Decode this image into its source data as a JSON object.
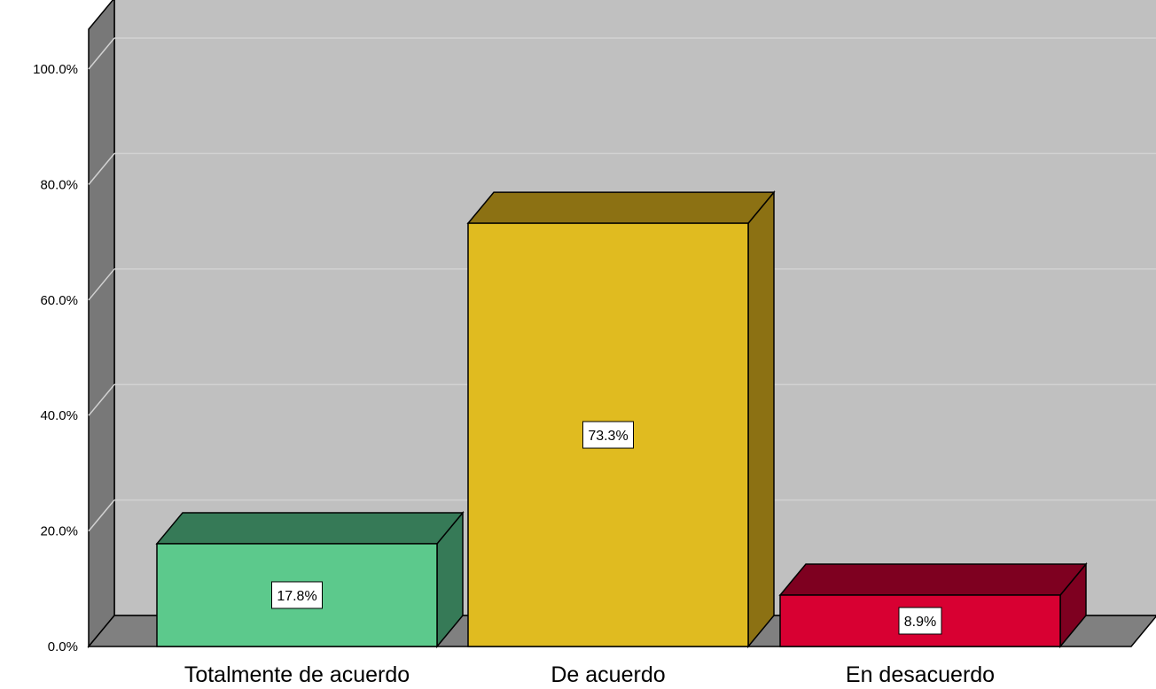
{
  "chart_data": {
    "type": "bar",
    "style": "3d",
    "categories": [
      "Totalmente de acuerdo",
      "De acuerdo",
      "En desacuerdo"
    ],
    "values": [
      17.8,
      73.3,
      8.9
    ],
    "data_labels": [
      "17.8%",
      "73.3%",
      "8.9%"
    ],
    "ytick_labels": [
      "0.0%",
      "20.0%",
      "40.0%",
      "60.0%",
      "80.0%",
      "100.0%"
    ],
    "ylim": [
      0,
      100
    ],
    "grid": true,
    "legend": "none",
    "colors": {
      "bars_front": [
        "#5cc98c",
        "#e0bb20",
        "#d80032"
      ],
      "bars_top": [
        "#367a57",
        "#8c7113",
        "#7e0020"
      ],
      "bars_side": [
        "#367a57",
        "#8c7113",
        "#7e0020"
      ],
      "back_wall": "#c0c0c0",
      "side_wall": "#787878",
      "floor": "#808080",
      "gridline": "#d2d2d2"
    }
  }
}
